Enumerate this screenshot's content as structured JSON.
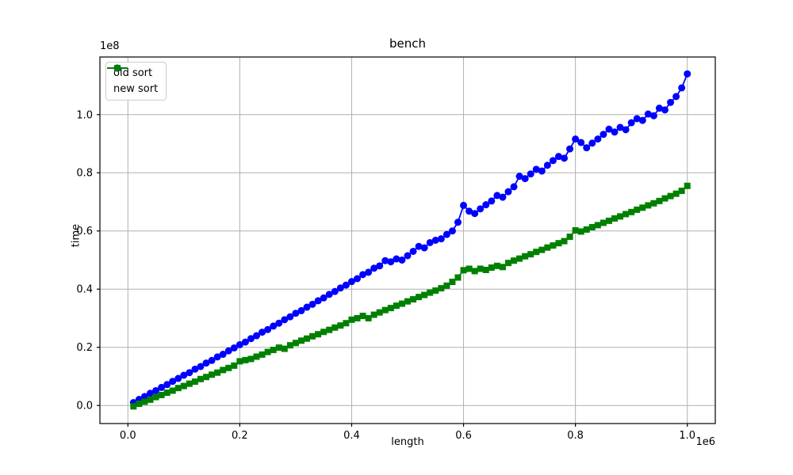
{
  "chart_data": {
    "type": "line",
    "title": "bench",
    "xlabel": "length",
    "ylabel": "time",
    "x_offset_label": "1e6",
    "y_offset_label": "1e8",
    "grid": true,
    "grid_color": "#b0b0b0",
    "spine_color": "#000000",
    "legend_position": "upper-left",
    "xlim_1e6": [
      -0.05,
      1.05
    ],
    "ylim_1e8": [
      -0.062,
      1.198
    ],
    "xticks_1e6": [
      0.0,
      0.2,
      0.4,
      0.6,
      0.8,
      1.0
    ],
    "xtick_labels": [
      "0.0",
      "0.2",
      "0.4",
      "0.6",
      "0.8",
      "1.0"
    ],
    "yticks_1e8": [
      0.0,
      0.2,
      0.4,
      0.6,
      0.8,
      1.0
    ],
    "ytick_labels": [
      "0.0",
      "0.2",
      "0.4",
      "0.6",
      "0.8",
      "1.0"
    ],
    "x_1e6": [
      0.01,
      0.02,
      0.03,
      0.04,
      0.05,
      0.06,
      0.07,
      0.08,
      0.09,
      0.1,
      0.11,
      0.12,
      0.13,
      0.14,
      0.15,
      0.16,
      0.17,
      0.18,
      0.19,
      0.2,
      0.21,
      0.22,
      0.23,
      0.24,
      0.25,
      0.26,
      0.27,
      0.28,
      0.29,
      0.3,
      0.31,
      0.32,
      0.33,
      0.34,
      0.35,
      0.36,
      0.37,
      0.38,
      0.39,
      0.4,
      0.41,
      0.42,
      0.43,
      0.44,
      0.45,
      0.46,
      0.47,
      0.48,
      0.49,
      0.5,
      0.51,
      0.52,
      0.53,
      0.54,
      0.55,
      0.56,
      0.57,
      0.58,
      0.59,
      0.6,
      0.61,
      0.62,
      0.63,
      0.64,
      0.65,
      0.66,
      0.67,
      0.68,
      0.69,
      0.7,
      0.71,
      0.72,
      0.73,
      0.74,
      0.75,
      0.76,
      0.77,
      0.78,
      0.79,
      0.8,
      0.81,
      0.82,
      0.83,
      0.84,
      0.85,
      0.86,
      0.87,
      0.88,
      0.89,
      0.9,
      0.91,
      0.92,
      0.93,
      0.94,
      0.95,
      0.96,
      0.97,
      0.98,
      0.99,
      1.0
    ],
    "series": [
      {
        "name": "old sort",
        "color": "#0000ff",
        "marker": "circle",
        "y_1e8": [
          0.01,
          0.021,
          0.031,
          0.042,
          0.051,
          0.062,
          0.072,
          0.083,
          0.093,
          0.104,
          0.113,
          0.125,
          0.134,
          0.146,
          0.155,
          0.167,
          0.176,
          0.188,
          0.198,
          0.209,
          0.218,
          0.23,
          0.24,
          0.252,
          0.261,
          0.273,
          0.283,
          0.295,
          0.305,
          0.317,
          0.326,
          0.338,
          0.348,
          0.36,
          0.37,
          0.382,
          0.392,
          0.404,
          0.414,
          0.426,
          0.436,
          0.45,
          0.458,
          0.472,
          0.48,
          0.498,
          0.494,
          0.504,
          0.5,
          0.515,
          0.53,
          0.547,
          0.542,
          0.56,
          0.568,
          0.573,
          0.588,
          0.6,
          0.63,
          0.688,
          0.668,
          0.66,
          0.676,
          0.69,
          0.703,
          0.722,
          0.716,
          0.735,
          0.752,
          0.788,
          0.78,
          0.796,
          0.812,
          0.806,
          0.826,
          0.842,
          0.856,
          0.85,
          0.882,
          0.916,
          0.904,
          0.886,
          0.902,
          0.916,
          0.932,
          0.95,
          0.94,
          0.956,
          0.948,
          0.972,
          0.986,
          0.98,
          1.002,
          0.996,
          1.022,
          1.016,
          1.042,
          1.062,
          1.092,
          1.14
        ]
      },
      {
        "name": "new sort",
        "color": "#008000",
        "marker": "square",
        "y_1e8": [
          -0.003,
          0.006,
          0.013,
          0.02,
          0.029,
          0.036,
          0.044,
          0.051,
          0.06,
          0.067,
          0.075,
          0.082,
          0.091,
          0.098,
          0.106,
          0.113,
          0.122,
          0.129,
          0.137,
          0.152,
          0.156,
          0.16,
          0.168,
          0.175,
          0.184,
          0.191,
          0.199,
          0.195,
          0.207,
          0.215,
          0.223,
          0.23,
          0.238,
          0.245,
          0.253,
          0.26,
          0.268,
          0.275,
          0.283,
          0.295,
          0.3,
          0.308,
          0.3,
          0.312,
          0.32,
          0.328,
          0.335,
          0.343,
          0.35,
          0.358,
          0.365,
          0.373,
          0.38,
          0.388,
          0.395,
          0.403,
          0.412,
          0.425,
          0.44,
          0.465,
          0.47,
          0.462,
          0.47,
          0.466,
          0.474,
          0.48,
          0.476,
          0.49,
          0.498,
          0.505,
          0.513,
          0.52,
          0.528,
          0.535,
          0.543,
          0.55,
          0.558,
          0.565,
          0.58,
          0.602,
          0.598,
          0.605,
          0.613,
          0.62,
          0.628,
          0.635,
          0.643,
          0.65,
          0.658,
          0.665,
          0.673,
          0.68,
          0.688,
          0.695,
          0.703,
          0.712,
          0.72,
          0.728,
          0.738,
          0.755
        ]
      }
    ]
  }
}
